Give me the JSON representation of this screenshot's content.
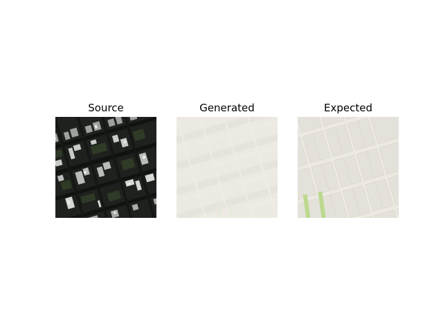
{
  "panels": [
    {
      "title": "Source",
      "kind": "satellite-image"
    },
    {
      "title": "Generated",
      "kind": "generated-map-image"
    },
    {
      "title": "Expected",
      "kind": "expected-map-image"
    }
  ],
  "colors": {
    "satellite_dark": "#1e211d",
    "satellite_roof": "#b9bcb8",
    "satellite_tree": "#2f3a27",
    "map_background": "#ece9e2",
    "map_block": "#e4e1da",
    "map_road": "#ffffff",
    "map_park": "#bcd98f"
  }
}
